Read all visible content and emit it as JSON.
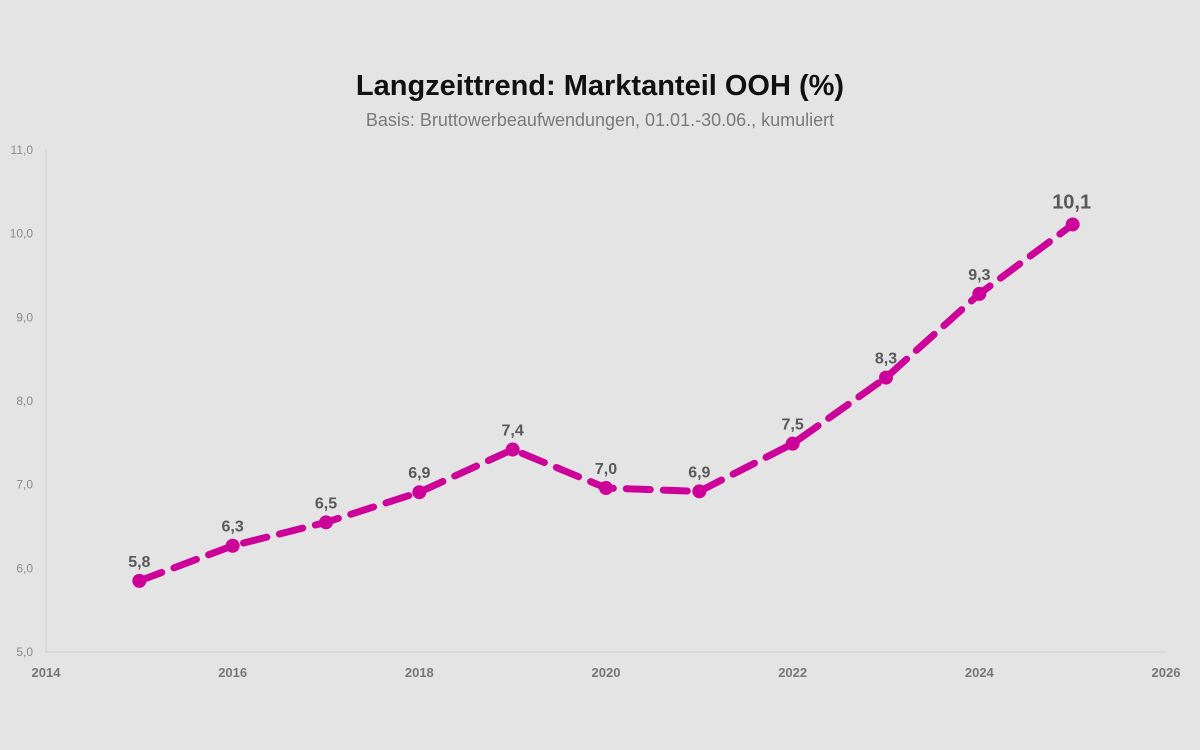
{
  "chart_data": {
    "type": "line",
    "title": "Langzeittrend: Marktanteil OOH (%)",
    "subtitle": "Basis: Bruttowerbeaufwendungen, 01.01.-30.06., kumuliert",
    "xlabel": "",
    "ylabel": "",
    "xlim": [
      2014,
      2026
    ],
    "ylim": [
      5.0,
      11.0
    ],
    "x_ticks": [
      "2014",
      "2016",
      "2018",
      "2020",
      "2022",
      "2024",
      "2026"
    ],
    "y_ticks": [
      "5,0",
      "6,0",
      "7,0",
      "8,0",
      "9,0",
      "10,0",
      "11,0"
    ],
    "grid": false,
    "legend": "none",
    "series": [
      {
        "color": "#cc0099",
        "line_style": "dashed",
        "x": [
          2015,
          2016,
          2017,
          2018,
          2019,
          2020,
          2021,
          2022,
          2023,
          2024,
          2025
        ],
        "values": [
          5.85,
          6.27,
          6.55,
          6.91,
          7.42,
          6.96,
          6.92,
          7.49,
          8.28,
          9.28,
          10.11
        ],
        "data_labels": [
          "5,8",
          "6,3",
          "6,5",
          "6,9",
          "7,4",
          "7,0",
          "6,9",
          "7,5",
          "8,3",
          "9,3",
          "10,1"
        ]
      }
    ]
  }
}
